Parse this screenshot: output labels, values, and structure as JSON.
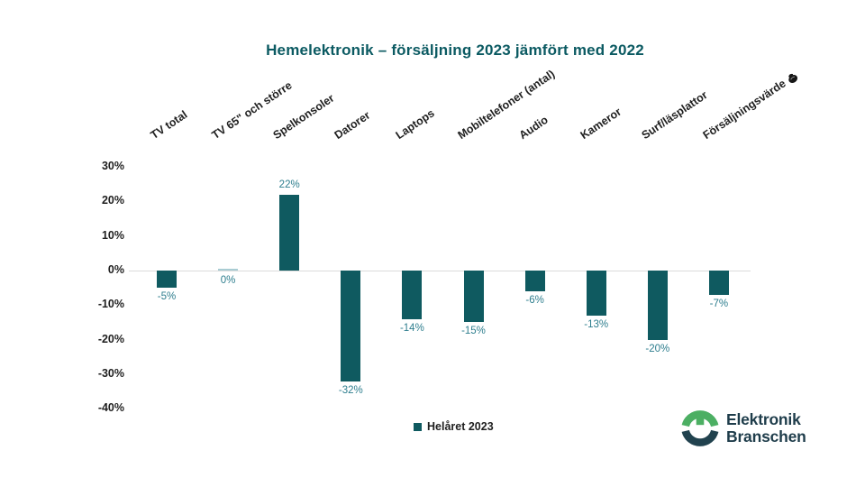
{
  "chart_data": {
    "type": "bar",
    "title": "Hemelektronik – försäljning 2023 jämfört med 2022",
    "categories": [
      "TV total",
      "TV 65\" och större",
      "Spelkonsoler",
      "Datorer",
      "Laptops",
      "Mobiltelefoner (antal)",
      "Audio",
      "Kameror",
      "Surf/läsplattor",
      "Försäljningsvärde"
    ],
    "values": [
      -5,
      0,
      22,
      -32,
      -14,
      -15,
      -6,
      -13,
      -20,
      -7
    ],
    "value_labels": [
      "-5%",
      "0%",
      "22%",
      "-32%",
      "-14%",
      "-15%",
      "-6%",
      "-13%",
      "-20%",
      "-7%"
    ],
    "last_category_icon": "money-bag-icon",
    "ytick_values": [
      30,
      20,
      10,
      0,
      -10,
      -20,
      -30,
      -40
    ],
    "ytick_labels": [
      "30%",
      "20%",
      "10%",
      "0%",
      "-10%",
      "-20%",
      "-30%",
      "-40%"
    ],
    "ylim": [
      -40,
      30
    ],
    "xlabel": "",
    "ylabel": "",
    "grid": "zero-line-only",
    "legend": {
      "label": "Helåret 2023",
      "position": "bottom-center"
    },
    "series": [
      {
        "name": "Helåret 2023",
        "values": [
          -5,
          0,
          22,
          -32,
          -14,
          -15,
          -6,
          -13,
          -20,
          -7
        ]
      }
    ],
    "colors": {
      "bar": "#0F5A60",
      "zero_value_bar": "#A9CCD3",
      "data_label": "#2E7E8E",
      "title": "#0B5A62",
      "axis_text": "#1f1f1f",
      "zero_line": "#dbdbdb"
    }
  },
  "logo": {
    "line1": "Elektronik",
    "line2": "Branschen",
    "colors": {
      "green": "#4CAF63",
      "dark": "#21424E",
      "text": "#1F3D4B"
    }
  }
}
